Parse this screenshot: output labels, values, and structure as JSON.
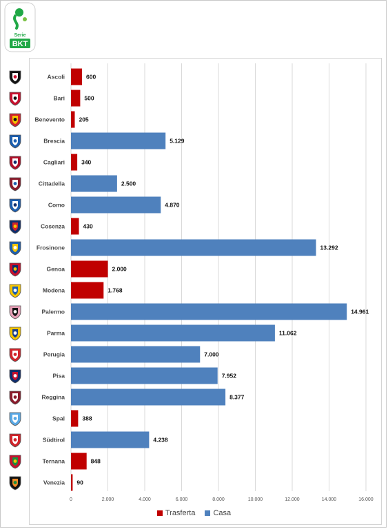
{
  "logo": {
    "top_text": "Serie",
    "bottom_text": "BKT",
    "colors": {
      "green": "#20a846",
      "ball_green": "#7ac143",
      "red": "#d2232a"
    }
  },
  "chart_data": {
    "type": "bar",
    "orientation": "horizontal",
    "categories": [
      "Ascoli",
      "Bari",
      "Benevento",
      "Brescia",
      "Cagliari",
      "Cittadella",
      "Como",
      "Cosenza",
      "Frosinone",
      "Genoa",
      "Modena",
      "Palermo",
      "Parma",
      "Perugia",
      "Pisa",
      "Reggina",
      "Spal",
      "Südtirol",
      "Ternana",
      "Venezia"
    ],
    "values": [
      600,
      500,
      205,
      5129,
      340,
      2500,
      4870,
      430,
      13292,
      2000,
      1768,
      14961,
      11062,
      7000,
      7952,
      8377,
      388,
      4238,
      848,
      90
    ],
    "value_labels": [
      "600",
      "500",
      "205",
      "5.129",
      "340",
      "2.500",
      "4.870",
      "430",
      "13.292",
      "2.000",
      "1.768",
      "14.961",
      "11.062",
      "7.000",
      "7.952",
      "8.377",
      "388",
      "4.238",
      "848",
      "90"
    ],
    "bar_series": [
      "Trasferta",
      "Trasferta",
      "Trasferta",
      "Casa",
      "Trasferta",
      "Casa",
      "Casa",
      "Trasferta",
      "Casa",
      "Trasferta",
      "Trasferta",
      "Casa",
      "Casa",
      "Casa",
      "Casa",
      "Casa",
      "Trasferta",
      "Casa",
      "Trasferta",
      "Trasferta"
    ],
    "series": [
      {
        "name": "Trasferta",
        "color": "#c00000"
      },
      {
        "name": "Casa",
        "color": "#4f81bd"
      }
    ],
    "xlim": [
      0,
      16000
    ],
    "x_ticks": [
      0,
      2000,
      4000,
      6000,
      8000,
      10000,
      12000,
      14000,
      16000
    ],
    "x_tick_labels": [
      "0",
      "2.000",
      "4.000",
      "6.000",
      "8.000",
      "10.000",
      "12.000",
      "14.000",
      "16.000"
    ],
    "grid": "vertical",
    "legend_position": "bottom",
    "title": "",
    "xlabel": "",
    "ylabel": ""
  },
  "crests": [
    {
      "team": "Ascoli",
      "icon": "ascoli-crest",
      "colors": [
        "#111111",
        "#ffffff",
        "#c8102e"
      ]
    },
    {
      "team": "Bari",
      "icon": "bari-crest",
      "colors": [
        "#c8102e",
        "#ffffff",
        "#111111"
      ]
    },
    {
      "team": "Benevento",
      "icon": "benevento-crest",
      "colors": [
        "#d2232a",
        "#f6c500",
        "#111111"
      ]
    },
    {
      "team": "Brescia",
      "icon": "brescia-crest",
      "colors": [
        "#1c5fb0",
        "#ffffff",
        "#1c5fb0"
      ]
    },
    {
      "team": "Cagliari",
      "icon": "cagliari-crest",
      "colors": [
        "#b0102a",
        "#ffffff",
        "#0d2d6e"
      ]
    },
    {
      "team": "Cittadella",
      "icon": "cittadella-crest",
      "colors": [
        "#8b1a2b",
        "#ffffff",
        "#1c5fb0"
      ]
    },
    {
      "team": "Como",
      "icon": "como-crest",
      "colors": [
        "#1c5fb0",
        "#ffffff",
        "#0d2d6e"
      ]
    },
    {
      "team": "Cosenza",
      "icon": "cosenza-crest",
      "colors": [
        "#0d2d6e",
        "#d2232a",
        "#f6c500"
      ]
    },
    {
      "team": "Frosinone",
      "icon": "frosinone-crest",
      "colors": [
        "#1c5fb0",
        "#f6c500",
        "#ffffff"
      ]
    },
    {
      "team": "Genoa",
      "icon": "genoa-crest",
      "colors": [
        "#c8102e",
        "#0d2d6e",
        "#f6c500"
      ]
    },
    {
      "team": "Modena",
      "icon": "modena-crest",
      "colors": [
        "#f6c500",
        "#1c5fb0",
        "#ffffff"
      ]
    },
    {
      "team": "Palermo",
      "icon": "palermo-crest",
      "colors": [
        "#e8a0b8",
        "#111111",
        "#ffffff"
      ]
    },
    {
      "team": "Parma",
      "icon": "parma-crest",
      "colors": [
        "#f6c500",
        "#1c3f8a",
        "#ffffff"
      ]
    },
    {
      "team": "Perugia",
      "icon": "perugia-crest",
      "colors": [
        "#d2232a",
        "#ffffff",
        "#d2232a"
      ]
    },
    {
      "team": "Pisa",
      "icon": "pisa-crest",
      "colors": [
        "#0d2d6e",
        "#c8102e",
        "#ffffff"
      ]
    },
    {
      "team": "Reggina",
      "icon": "reggina-crest",
      "colors": [
        "#8b1a2b",
        "#ffffff",
        "#8b1a2b"
      ]
    },
    {
      "team": "Spal",
      "icon": "spal-crest",
      "colors": [
        "#5aa9e6",
        "#ffffff",
        "#5aa9e6"
      ]
    },
    {
      "team": "Südtirol",
      "icon": "sudtirol-crest",
      "colors": [
        "#d2232a",
        "#ffffff",
        "#d2232a"
      ]
    },
    {
      "team": "Ternana",
      "icon": "ternana-crest",
      "colors": [
        "#c8102e",
        "#1e8e3e",
        "#f6c500"
      ]
    },
    {
      "team": "Venezia",
      "icon": "venezia-crest",
      "colors": [
        "#111111",
        "#f28c28",
        "#1e8e3e"
      ]
    }
  ]
}
